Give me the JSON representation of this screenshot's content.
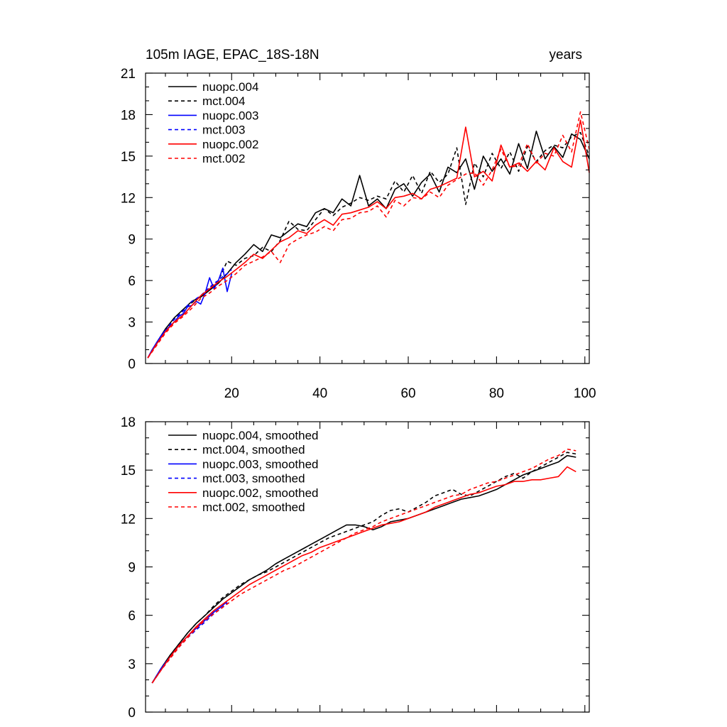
{
  "chart_data": [
    {
      "type": "line",
      "title": "105m IAGE, EPAC_18S-18N",
      "units_label": "years",
      "xlim": [
        0.5,
        101
      ],
      "ylim": [
        0,
        21
      ],
      "x_ticks": [
        20,
        40,
        60,
        80,
        100
      ],
      "y_ticks": [
        0,
        3,
        6,
        9,
        12,
        15,
        18,
        21
      ],
      "legend_position": "top-left",
      "series": [
        {
          "name": "nuopc.004",
          "color": "#000000",
          "dash": "solid",
          "x": [
            1,
            3,
            5,
            7,
            9,
            11,
            13,
            15,
            17,
            19,
            21,
            23,
            25,
            27,
            29,
            31,
            33,
            35,
            37,
            39,
            41,
            43,
            45,
            47,
            49,
            51,
            53,
            55,
            57,
            59,
            61,
            63,
            65,
            67,
            69,
            71,
            73,
            75,
            77,
            79,
            81,
            83,
            85,
            87,
            89,
            91,
            93,
            95,
            97,
            99,
            101
          ],
          "values": [
            0.4,
            1.5,
            2.5,
            3.3,
            3.9,
            4.5,
            4.8,
            5.3,
            5.8,
            6.5,
            7.3,
            7.9,
            8.6,
            8.1,
            9.3,
            9.1,
            9.6,
            10.1,
            9.9,
            10.9,
            11.2,
            10.9,
            11.9,
            11.4,
            13.6,
            11.4,
            11.9,
            11.2,
            12.6,
            13.0,
            12.1,
            13.1,
            13.7,
            12.4,
            14.2,
            13.8,
            14.8,
            12.6,
            15.0,
            13.9,
            14.8,
            13.7,
            15.9,
            14.1,
            16.8,
            14.8,
            15.7,
            14.9,
            16.6,
            16.2,
            14.8
          ]
        },
        {
          "name": "mct.004",
          "color": "#000000",
          "dash": "dashed",
          "x": [
            1,
            3,
            5,
            7,
            9,
            11,
            13,
            15,
            17,
            19,
            21,
            23,
            25,
            27,
            29,
            31,
            33,
            35,
            37,
            39,
            41,
            43,
            45,
            47,
            49,
            51,
            53,
            55,
            57,
            59,
            61,
            63,
            65,
            67,
            69,
            71,
            73,
            75,
            77,
            79,
            81,
            83,
            85,
            87,
            89,
            91,
            93,
            95,
            97,
            99,
            101
          ],
          "values": [
            0.4,
            1.4,
            2.4,
            3.2,
            3.8,
            4.4,
            4.9,
            5.5,
            6.0,
            7.4,
            7.1,
            7.6,
            7.8,
            8.4,
            8.1,
            8.9,
            10.3,
            9.7,
            9.6,
            10.4,
            11.2,
            10.7,
            11.3,
            11.6,
            12.0,
            11.8,
            12.1,
            11.9,
            13.2,
            12.4,
            13.6,
            12.3,
            13.9,
            13.1,
            13.7,
            15.6,
            11.5,
            14.5,
            13.5,
            15.2,
            14.1,
            15.3,
            13.9,
            15.7,
            14.6,
            15.4,
            15.8,
            15.6,
            16.4,
            16.7,
            15.0
          ]
        },
        {
          "name": "nuopc.003",
          "color": "#0000ff",
          "dash": "solid",
          "x": [
            1,
            2,
            3,
            4,
            5,
            6,
            7,
            8,
            9,
            10,
            11,
            12,
            13,
            14,
            15,
            16,
            17,
            18,
            19,
            20
          ],
          "values": [
            0.4,
            1.0,
            1.5,
            2.0,
            2.4,
            2.7,
            3.0,
            3.4,
            3.6,
            4.1,
            4.2,
            4.5,
            4.3,
            5.1,
            6.2,
            5.4,
            6.0,
            6.9,
            5.2,
            6.5
          ]
        },
        {
          "name": "mct.003",
          "color": "#0000ff",
          "dash": "dashed",
          "x": [
            1,
            2,
            3,
            4,
            5,
            6,
            7,
            8,
            9,
            10,
            11,
            12,
            13,
            14,
            15,
            16,
            17,
            18,
            19,
            20
          ],
          "values": [
            0.4,
            0.9,
            1.4,
            1.9,
            2.3,
            2.8,
            3.2,
            3.5,
            3.8,
            4.2,
            4.5,
            4.7,
            4.9,
            5.2,
            5.5,
            5.8,
            6.0,
            6.3,
            6.5,
            6.8
          ]
        },
        {
          "name": "nuopc.002",
          "color": "#ff0000",
          "dash": "solid",
          "x": [
            1,
            3,
            5,
            7,
            9,
            11,
            13,
            15,
            17,
            19,
            21,
            23,
            25,
            27,
            29,
            31,
            33,
            35,
            37,
            39,
            41,
            43,
            45,
            47,
            49,
            51,
            53,
            55,
            57,
            59,
            61,
            63,
            65,
            67,
            69,
            71,
            73,
            75,
            77,
            79,
            81,
            83,
            85,
            87,
            89,
            91,
            93,
            95,
            97,
            99,
            101
          ],
          "values": [
            0.4,
            1.4,
            2.3,
            3.0,
            3.5,
            4.2,
            4.9,
            5.4,
            5.9,
            6.3,
            6.8,
            7.3,
            7.9,
            7.6,
            8.2,
            8.8,
            9.1,
            9.6,
            9.4,
            10.0,
            10.4,
            10.0,
            10.8,
            10.9,
            11.1,
            11.3,
            11.7,
            11.2,
            12.0,
            12.1,
            12.3,
            11.9,
            12.6,
            12.8,
            13.1,
            13.4,
            17.1,
            13.5,
            13.9,
            13.2,
            15.8,
            14.2,
            14.5,
            13.9,
            14.6,
            14.0,
            15.6,
            14.6,
            14.2,
            17.6,
            13.8
          ]
        },
        {
          "name": "mct.002",
          "color": "#ff0000",
          "dash": "dashed",
          "x": [
            1,
            3,
            5,
            7,
            9,
            11,
            13,
            15,
            17,
            19,
            21,
            23,
            25,
            27,
            29,
            31,
            33,
            35,
            37,
            39,
            41,
            43,
            45,
            47,
            49,
            51,
            53,
            55,
            57,
            59,
            61,
            63,
            65,
            67,
            69,
            71,
            73,
            75,
            77,
            79,
            81,
            83,
            85,
            87,
            89,
            91,
            93,
            95,
            97,
            99,
            101
          ],
          "values": [
            0.4,
            1.3,
            2.2,
            2.9,
            3.4,
            4.0,
            4.7,
            5.1,
            5.6,
            6.0,
            6.5,
            7.1,
            7.4,
            7.7,
            8.1,
            7.3,
            8.6,
            9.0,
            9.3,
            9.5,
            9.9,
            9.6,
            10.4,
            10.5,
            10.9,
            11.0,
            11.4,
            10.6,
            11.8,
            11.4,
            12.0,
            11.9,
            12.4,
            12.0,
            12.9,
            13.3,
            13.7,
            13.8,
            12.9,
            14.0,
            15.5,
            14.2,
            14.3,
            15.9,
            14.5,
            15.2,
            15.0,
            16.5,
            15.3,
            18.2,
            15.5
          ]
        }
      ]
    },
    {
      "type": "line",
      "title": "",
      "xlim": [
        0.5,
        101
      ],
      "ylim": [
        0,
        18
      ],
      "x_ticks": [
        20,
        40,
        60,
        80,
        100
      ],
      "y_ticks": [
        0,
        3,
        6,
        9,
        12,
        15,
        18
      ],
      "legend_position": "top-left",
      "series": [
        {
          "name": "nuopc.004, smoothed",
          "color": "#000000",
          "dash": "solid",
          "x": [
            2,
            4,
            6,
            8,
            10,
            12,
            14,
            16,
            18,
            20,
            22,
            24,
            26,
            28,
            30,
            32,
            34,
            36,
            38,
            40,
            42,
            44,
            46,
            48,
            50,
            52,
            54,
            56,
            58,
            60,
            62,
            64,
            66,
            68,
            70,
            72,
            74,
            76,
            78,
            80,
            82,
            84,
            86,
            88,
            90,
            92,
            94,
            96,
            98
          ],
          "values": [
            1.8,
            2.7,
            3.5,
            4.2,
            4.9,
            5.5,
            6.0,
            6.5,
            7.0,
            7.4,
            7.8,
            8.2,
            8.5,
            8.8,
            9.2,
            9.5,
            9.8,
            10.1,
            10.4,
            10.7,
            11.0,
            11.3,
            11.6,
            11.6,
            11.5,
            11.3,
            11.5,
            11.8,
            11.9,
            12.0,
            12.2,
            12.4,
            12.6,
            12.8,
            13.0,
            13.2,
            13.3,
            13.4,
            13.6,
            13.8,
            14.1,
            14.4,
            14.7,
            14.9,
            15.1,
            15.3,
            15.5,
            15.9,
            15.8
          ]
        },
        {
          "name": "mct.004, smoothed",
          "color": "#000000",
          "dash": "dashed",
          "x": [
            2,
            4,
            6,
            8,
            10,
            12,
            14,
            16,
            18,
            20,
            22,
            24,
            26,
            28,
            30,
            32,
            34,
            36,
            38,
            40,
            42,
            44,
            46,
            48,
            50,
            52,
            54,
            56,
            58,
            60,
            62,
            64,
            66,
            68,
            70,
            72,
            74,
            76,
            78,
            80,
            82,
            84,
            86,
            88,
            90,
            92,
            94,
            96,
            98
          ],
          "values": [
            1.8,
            2.7,
            3.5,
            4.2,
            4.9,
            5.5,
            6.0,
            6.6,
            7.1,
            7.5,
            7.9,
            8.2,
            8.5,
            8.7,
            9.0,
            9.3,
            9.6,
            9.9,
            10.2,
            10.5,
            10.8,
            11.0,
            11.2,
            11.4,
            11.6,
            11.8,
            12.2,
            12.5,
            12.6,
            12.4,
            12.7,
            13.0,
            13.4,
            13.6,
            13.8,
            13.5,
            13.4,
            13.7,
            14.0,
            14.3,
            14.6,
            14.8,
            14.5,
            14.9,
            15.2,
            15.5,
            15.8,
            16.1,
            16.0
          ]
        },
        {
          "name": "nuopc.003, smoothed",
          "color": "#0000ff",
          "dash": "solid",
          "x": [
            2,
            4,
            6,
            8,
            10,
            12,
            14,
            16,
            18,
            19
          ],
          "values": [
            1.8,
            2.7,
            3.4,
            4.1,
            4.7,
            5.2,
            5.7,
            6.2,
            6.6,
            6.9
          ]
        },
        {
          "name": "mct.003, smoothed",
          "color": "#0000ff",
          "dash": "dashed",
          "x": [
            2,
            4,
            6,
            8,
            10,
            12,
            14,
            16,
            18,
            19
          ],
          "values": [
            1.8,
            2.6,
            3.3,
            4.0,
            4.6,
            5.1,
            5.6,
            6.1,
            6.5,
            6.8
          ]
        },
        {
          "name": "nuopc.002, smoothed",
          "color": "#ff0000",
          "dash": "solid",
          "x": [
            2,
            4,
            6,
            8,
            10,
            12,
            14,
            16,
            18,
            20,
            22,
            24,
            26,
            28,
            30,
            32,
            34,
            36,
            38,
            40,
            42,
            44,
            46,
            48,
            50,
            52,
            54,
            56,
            58,
            60,
            62,
            64,
            66,
            68,
            70,
            72,
            74,
            76,
            78,
            80,
            82,
            84,
            86,
            88,
            90,
            92,
            94,
            96,
            98
          ],
          "values": [
            1.8,
            2.6,
            3.4,
            4.1,
            4.7,
            5.3,
            5.8,
            6.3,
            6.7,
            7.1,
            7.5,
            7.9,
            8.2,
            8.5,
            8.8,
            9.1,
            9.4,
            9.7,
            9.9,
            10.2,
            10.4,
            10.6,
            10.8,
            11.0,
            11.2,
            11.4,
            11.6,
            11.7,
            11.8,
            12.0,
            12.2,
            12.4,
            12.7,
            12.9,
            13.1,
            13.3,
            13.5,
            13.6,
            13.8,
            14.0,
            14.1,
            14.3,
            14.3,
            14.4,
            14.4,
            14.5,
            14.6,
            15.2,
            14.9
          ]
        },
        {
          "name": "mct.002, smoothed",
          "color": "#ff0000",
          "dash": "dashed",
          "x": [
            2,
            4,
            6,
            8,
            10,
            12,
            14,
            16,
            18,
            20,
            22,
            24,
            26,
            28,
            30,
            32,
            34,
            36,
            38,
            40,
            42,
            44,
            46,
            48,
            50,
            52,
            54,
            56,
            58,
            60,
            62,
            64,
            66,
            68,
            70,
            72,
            74,
            76,
            78,
            80,
            82,
            84,
            86,
            88,
            90,
            92,
            94,
            96,
            98
          ],
          "values": [
            1.8,
            2.6,
            3.3,
            4.0,
            4.6,
            5.2,
            5.7,
            6.1,
            6.5,
            6.9,
            7.3,
            7.6,
            7.9,
            8.2,
            8.5,
            8.8,
            9.0,
            9.3,
            9.6,
            9.9,
            10.2,
            10.5,
            10.8,
            11.1,
            11.3,
            11.5,
            11.8,
            12.0,
            12.2,
            12.4,
            12.6,
            12.8,
            13.0,
            13.2,
            13.4,
            13.5,
            13.8,
            14.0,
            14.2,
            14.3,
            14.5,
            14.7,
            14.9,
            15.1,
            15.4,
            15.7,
            15.9,
            16.3,
            16.2
          ]
        }
      ]
    }
  ]
}
